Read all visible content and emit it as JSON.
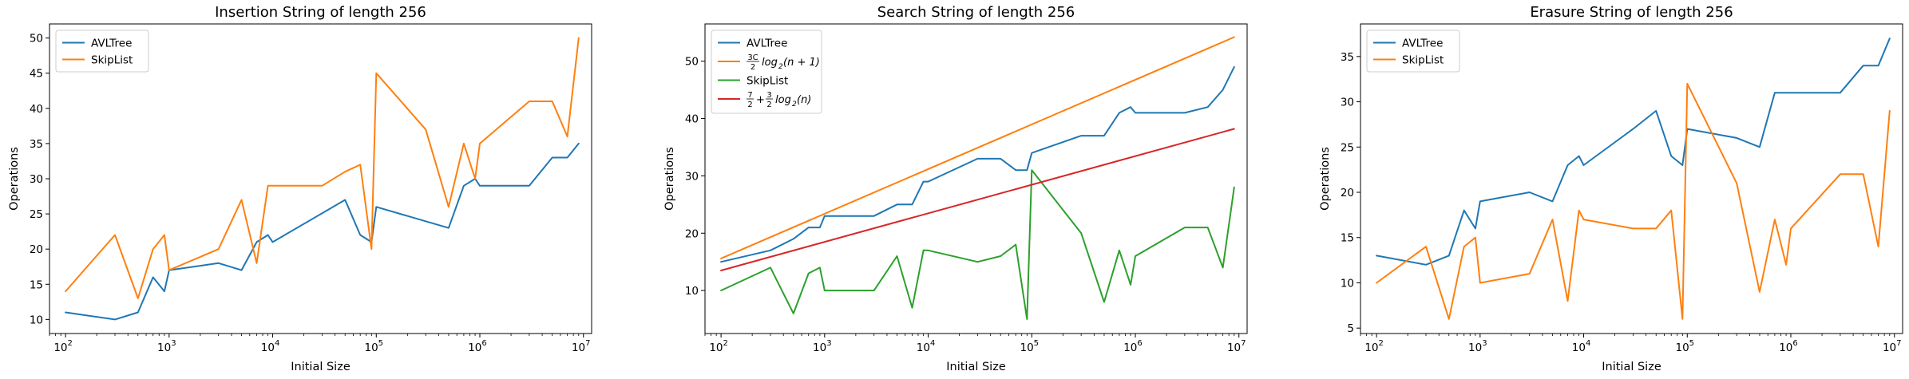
{
  "chart_data": [
    {
      "type": "line",
      "title": "Insertion String of length 256",
      "xlabel": "Initial Size",
      "ylabel": "Operations",
      "xscale": "log",
      "xlim": [
        70,
        12000000
      ],
      "ylim": [
        8.0,
        52.0
      ],
      "yticks": [
        10,
        15,
        20,
        25,
        30,
        35,
        40,
        45,
        50
      ],
      "xticks": [
        {
          "value": 100,
          "base": "10",
          "exp": "2"
        },
        {
          "value": 1000,
          "base": "10",
          "exp": "3"
        },
        {
          "value": 10000,
          "base": "10",
          "exp": "4"
        },
        {
          "value": 100000,
          "base": "10",
          "exp": "5"
        },
        {
          "value": 1000000,
          "base": "10",
          "exp": "6"
        },
        {
          "value": 10000000,
          "base": "10",
          "exp": "7"
        }
      ],
      "grid": false,
      "legend_position": "top-left",
      "series": [
        {
          "name": "AVLTree",
          "color": "#1f77b4",
          "x": [
            100,
            300,
            500,
            700,
            900,
            1000,
            3000,
            5000,
            7000,
            9000,
            10000,
            50000,
            70000,
            90000,
            100000,
            500000,
            700000,
            900000,
            1000000,
            3000000,
            5000000,
            7000000,
            9000000
          ],
          "y": [
            11,
            10,
            11,
            16,
            14,
            17,
            18,
            17,
            21,
            22,
            21,
            27,
            22,
            21,
            26,
            23,
            29,
            30,
            29,
            29,
            33,
            33,
            35
          ]
        },
        {
          "name": "SkipList",
          "color": "#ff7f0e",
          "x": [
            100,
            300,
            500,
            700,
            900,
            1000,
            3000,
            5000,
            7000,
            9000,
            10000,
            30000,
            50000,
            70000,
            90000,
            100000,
            300000,
            500000,
            700000,
            900000,
            1000000,
            3000000,
            5000000,
            7000000,
            9000000
          ],
          "y": [
            14,
            22,
            13,
            20,
            22,
            17,
            20,
            27,
            18,
            29,
            29,
            29,
            31,
            32,
            20,
            45,
            37,
            26,
            35,
            30,
            35,
            41,
            41,
            36,
            50
          ]
        }
      ]
    },
    {
      "type": "line",
      "title": "Search String of length 256",
      "xlabel": "Initial Size",
      "ylabel": "Operations",
      "xscale": "log",
      "xlim": [
        70,
        12000000
      ],
      "ylim": [
        2.5,
        56.5
      ],
      "yticks": [
        10,
        20,
        30,
        40,
        50
      ],
      "xticks": [
        {
          "value": 100,
          "base": "10",
          "exp": "2"
        },
        {
          "value": 1000,
          "base": "10",
          "exp": "3"
        },
        {
          "value": 10000,
          "base": "10",
          "exp": "4"
        },
        {
          "value": 100000,
          "base": "10",
          "exp": "5"
        },
        {
          "value": 1000000,
          "base": "10",
          "exp": "6"
        },
        {
          "value": 10000000,
          "base": "10",
          "exp": "7"
        }
      ],
      "grid": false,
      "legend_position": "top-left",
      "series": [
        {
          "name": "AVLTree",
          "color": "#1f77b4",
          "x": [
            100,
            300,
            500,
            700,
            900,
            1000,
            3000,
            5000,
            7000,
            9000,
            10000,
            30000,
            50000,
            70000,
            90000,
            100000,
            300000,
            500000,
            700000,
            900000,
            1000000,
            3000000,
            5000000,
            7000000,
            9000000
          ],
          "y": [
            15,
            17,
            19,
            21,
            21,
            23,
            23,
            25,
            25,
            29,
            29,
            33,
            33,
            31,
            31,
            34,
            37,
            37,
            41,
            42,
            41,
            41,
            42,
            45,
            49
          ]
        },
        {
          "name_parts": {
            "num": "3C",
            "den": "2",
            "rest": "log",
            "sub": "2",
            "tail": "(n + 1)"
          },
          "color": "#ff7f0e",
          "x": [
            100,
            9000000
          ],
          "y": [
            15.6,
            54.2
          ]
        },
        {
          "name": "SkipList",
          "color": "#2ca02c",
          "x": [
            100,
            300,
            500,
            700,
            900,
            1000,
            3000,
            5000,
            7000,
            9000,
            10000,
            30000,
            50000,
            70000,
            90000,
            100000,
            300000,
            500000,
            700000,
            900000,
            1000000,
            3000000,
            5000000,
            7000000,
            9000000
          ],
          "y": [
            10,
            14,
            6,
            13,
            14,
            10,
            10,
            16,
            7,
            17,
            17,
            15,
            16,
            18,
            5,
            31,
            20,
            8,
            17,
            11,
            16,
            21,
            21,
            14,
            28
          ]
        },
        {
          "name_parts": {
            "num": "7",
            "den": "2",
            "plus": "+",
            "num2": "3",
            "den2": "2",
            "rest": "log",
            "sub": "2",
            "tail": "(n)"
          },
          "color": "#d62728",
          "x": [
            100,
            9000000
          ],
          "y": [
            13.5,
            38.2
          ]
        }
      ]
    },
    {
      "type": "line",
      "title": "Erasure String of length 256",
      "xlabel": "Initial Size",
      "ylabel": "Operations",
      "xscale": "log",
      "xlim": [
        70,
        12000000
      ],
      "ylim": [
        4.4,
        38.6
      ],
      "yticks": [
        5,
        10,
        15,
        20,
        25,
        30,
        35
      ],
      "xticks": [
        {
          "value": 100,
          "base": "10",
          "exp": "2"
        },
        {
          "value": 1000,
          "base": "10",
          "exp": "3"
        },
        {
          "value": 10000,
          "base": "10",
          "exp": "4"
        },
        {
          "value": 100000,
          "base": "10",
          "exp": "5"
        },
        {
          "value": 1000000,
          "base": "10",
          "exp": "6"
        },
        {
          "value": 10000000,
          "base": "10",
          "exp": "7"
        }
      ],
      "grid": false,
      "legend_position": "top-left",
      "series": [
        {
          "name": "AVLTree",
          "color": "#1f77b4",
          "x": [
            100,
            300,
            500,
            700,
            900,
            1000,
            3000,
            5000,
            7000,
            9000,
            10000,
            30000,
            50000,
            70000,
            90000,
            100000,
            300000,
            500000,
            700000,
            900000,
            1000000,
            3000000,
            5000000,
            7000000,
            9000000
          ],
          "y": [
            13,
            12,
            13,
            18,
            16,
            19,
            20,
            19,
            23,
            24,
            23,
            27,
            29,
            24,
            23,
            27,
            26,
            25,
            31,
            31,
            31,
            31,
            34,
            34,
            37
          ]
        },
        {
          "name": "SkipList",
          "color": "#ff7f0e",
          "x": [
            100,
            300,
            500,
            700,
            900,
            1000,
            3000,
            5000,
            7000,
            9000,
            10000,
            30000,
            50000,
            70000,
            90000,
            100000,
            300000,
            500000,
            700000,
            900000,
            1000000,
            3000000,
            5000000,
            7000000,
            9000000
          ],
          "y": [
            10,
            14,
            6,
            14,
            15,
            10,
            11,
            17,
            8,
            18,
            17,
            16,
            16,
            18,
            6,
            32,
            21,
            9,
            17,
            12,
            16,
            22,
            22,
            14,
            29
          ]
        }
      ]
    }
  ]
}
